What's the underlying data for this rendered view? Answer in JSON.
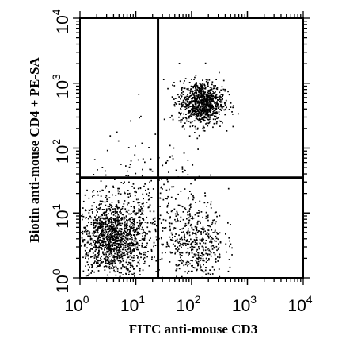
{
  "chart_data": {
    "type": "scatter",
    "style": "flow-cytometry dot plot with quadrant gates",
    "xlabel": "FITC anti-mouse CD3",
    "ylabel": "Biotin anti-mouse CD4 + PE-SA",
    "x_scale": "log",
    "y_scale": "log",
    "xlim": [
      1,
      10000
    ],
    "ylim": [
      1,
      10000
    ],
    "x_ticks": [
      {
        "base": "10",
        "exp": "0"
      },
      {
        "base": "10",
        "exp": "1"
      },
      {
        "base": "10",
        "exp": "2"
      },
      {
        "base": "10",
        "exp": "3"
      },
      {
        "base": "10",
        "exp": "4"
      }
    ],
    "y_ticks": [
      {
        "base": "10",
        "exp": "0"
      },
      {
        "base": "10",
        "exp": "1"
      },
      {
        "base": "10",
        "exp": "2"
      },
      {
        "base": "10",
        "exp": "3"
      },
      {
        "base": "10",
        "exp": "4"
      }
    ],
    "quadrant_gates": {
      "x": 25,
      "y": 35
    },
    "populations": [
      {
        "name": "CD3- CD4- (lower left)",
        "center": [
          4,
          4
        ],
        "spread_decades": [
          0.32,
          0.3
        ],
        "n": 1400
      },
      {
        "name": "CD3+ CD4+ (upper right)",
        "center": [
          150,
          500
        ],
        "spread_decades": [
          0.2,
          0.17
        ],
        "n": 900
      },
      {
        "name": "CD3+ CD4- (lower right)",
        "center": [
          120,
          3.5
        ],
        "spread_decades": [
          0.25,
          0.32
        ],
        "n": 450
      },
      {
        "name": "scatter between",
        "center": [
          20,
          15
        ],
        "spread_decades": [
          0.6,
          0.5
        ],
        "n": 260
      }
    ],
    "point_color": "#000000",
    "grid": false,
    "legend": "none"
  }
}
